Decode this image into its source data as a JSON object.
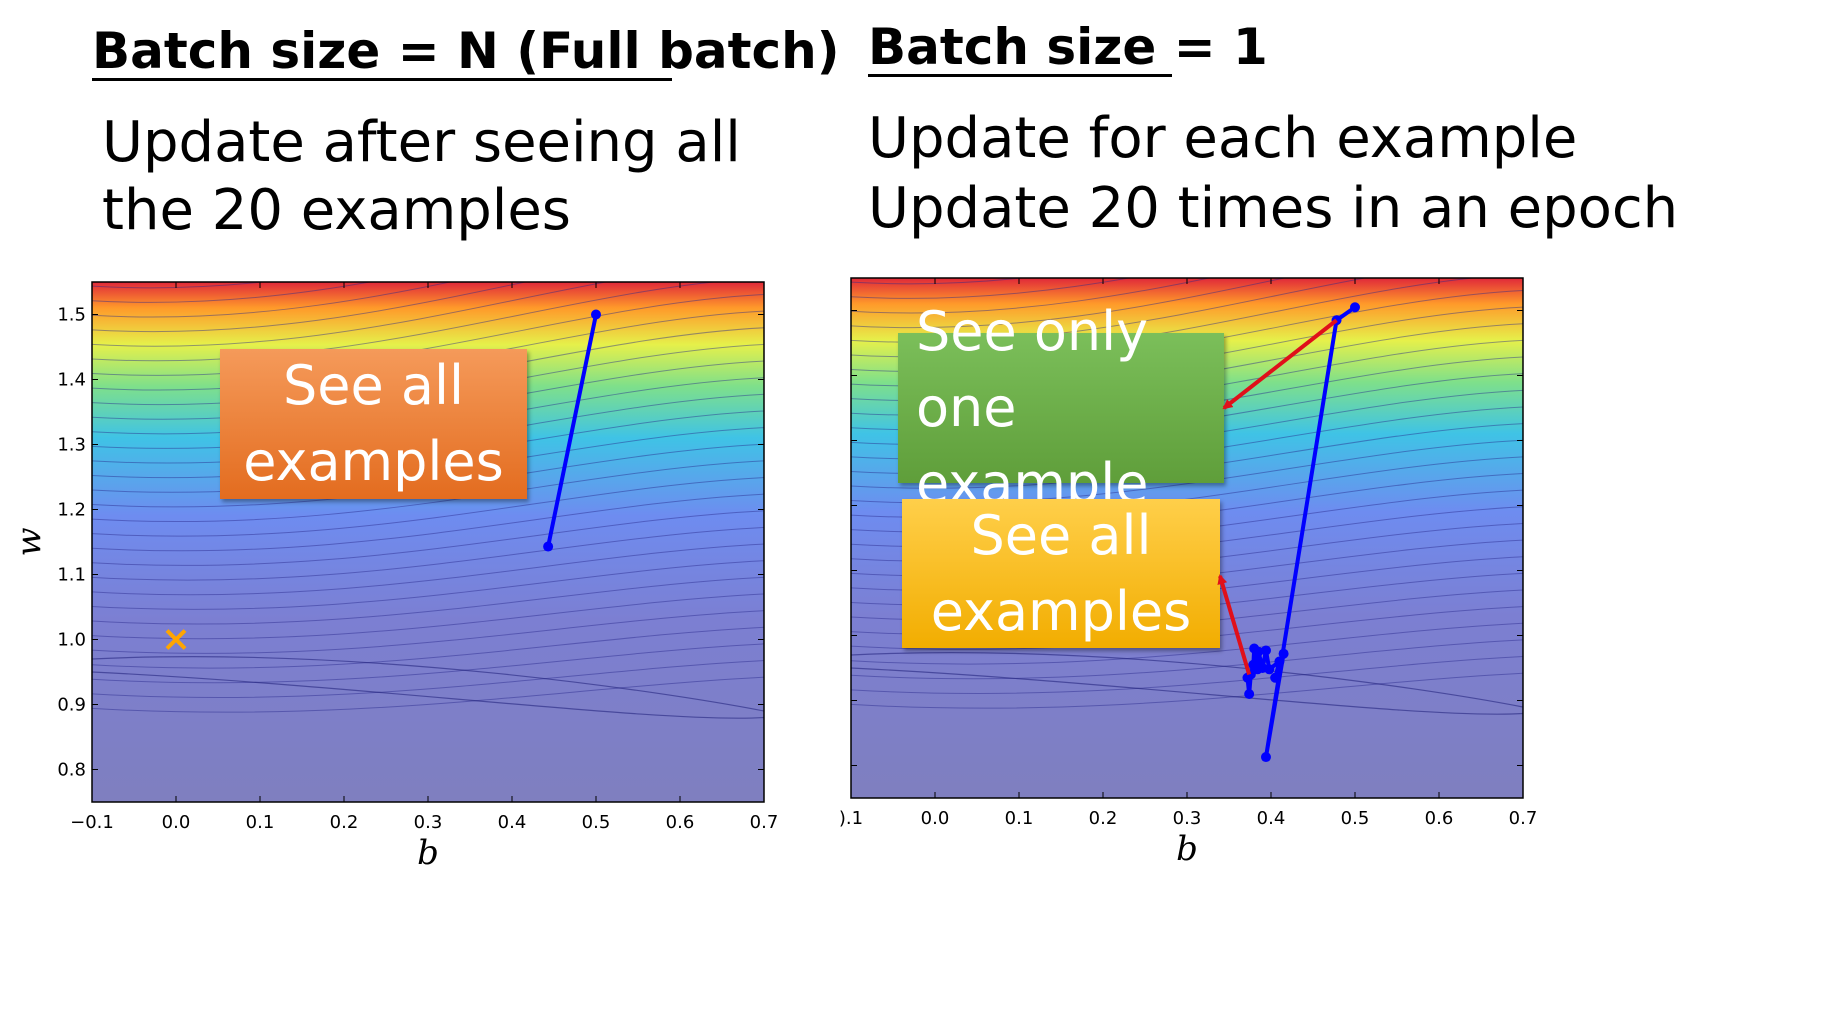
{
  "left": {
    "heading": "Batch size = N (Full batch)",
    "description_lines": [
      "Update after seeing all",
      "the 20 examples"
    ],
    "callout": "See all\nexamples",
    "callout_color": "#ED7D31"
  },
  "right": {
    "heading": "Batch size = 1",
    "description_lines": [
      "Update for each example",
      "Update 20 times in an epoch"
    ],
    "callout_green": "See only one\nexample",
    "callout_green_color": "#70AD47",
    "callout_yellow": "See all\nexamples",
    "callout_yellow_color": "#FFC000"
  },
  "chart_data": [
    {
      "type": "line",
      "background": "loss contour (heatmap, jet colormap)",
      "xlabel": "b",
      "ylabel": "w",
      "xlim": [
        -0.1,
        0.7
      ],
      "ylim": [
        0.75,
        1.55
      ],
      "xticks": [
        "−0.1",
        "0.0",
        "0.1",
        "0.2",
        "0.3",
        "0.4",
        "0.5",
        "0.6",
        "0.7"
      ],
      "yticks": [
        "0.8",
        "0.9",
        "1.0",
        "1.1",
        "1.2",
        "1.3",
        "1.4",
        "1.5"
      ],
      "marker": {
        "x": 0.0,
        "y": 1.0,
        "symbol": "x",
        "color": "#FFA500"
      },
      "series": [
        {
          "color": "#0000FF",
          "points": [
            [
              0.5,
              1.5
            ],
            [
              0.443,
              1.143
            ]
          ]
        }
      ]
    },
    {
      "type": "line",
      "background": "loss contour (heatmap, jet colormap)",
      "xlabel": "b",
      "ylabel": "",
      "xlim": [
        -0.1,
        0.7
      ],
      "ylim": [
        0.75,
        1.55
      ],
      "xticks": [
        ").1",
        "0.0",
        "0.1",
        "0.2",
        "0.3",
        "0.4",
        "0.5",
        "0.6",
        "0.7"
      ],
      "yticks": [],
      "series": [
        {
          "color": "#0000FF",
          "points": [
            [
              0.5,
              1.505
            ],
            [
              0.478,
              1.485
            ],
            [
              0.394,
              0.813
            ],
            [
              0.415,
              0.972
            ],
            [
              0.405,
              0.935
            ],
            [
              0.41,
              0.96
            ],
            [
              0.398,
              0.948
            ],
            [
              0.394,
              0.977
            ],
            [
              0.39,
              0.95
            ],
            [
              0.385,
              0.975
            ],
            [
              0.384,
              0.948
            ],
            [
              0.38,
              0.98
            ],
            [
              0.379,
              0.955
            ],
            [
              0.376,
              0.94
            ],
            [
              0.374,
              0.91
            ],
            [
              0.372,
              0.935
            ]
          ]
        }
      ],
      "arrows": [
        {
          "color": "#E0101A",
          "from": [
            0.478,
            1.485
          ],
          "to_callout": "green"
        },
        {
          "color": "#E0101A",
          "from": [
            0.374,
            0.94
          ],
          "to_callout": "yellow"
        }
      ]
    }
  ]
}
